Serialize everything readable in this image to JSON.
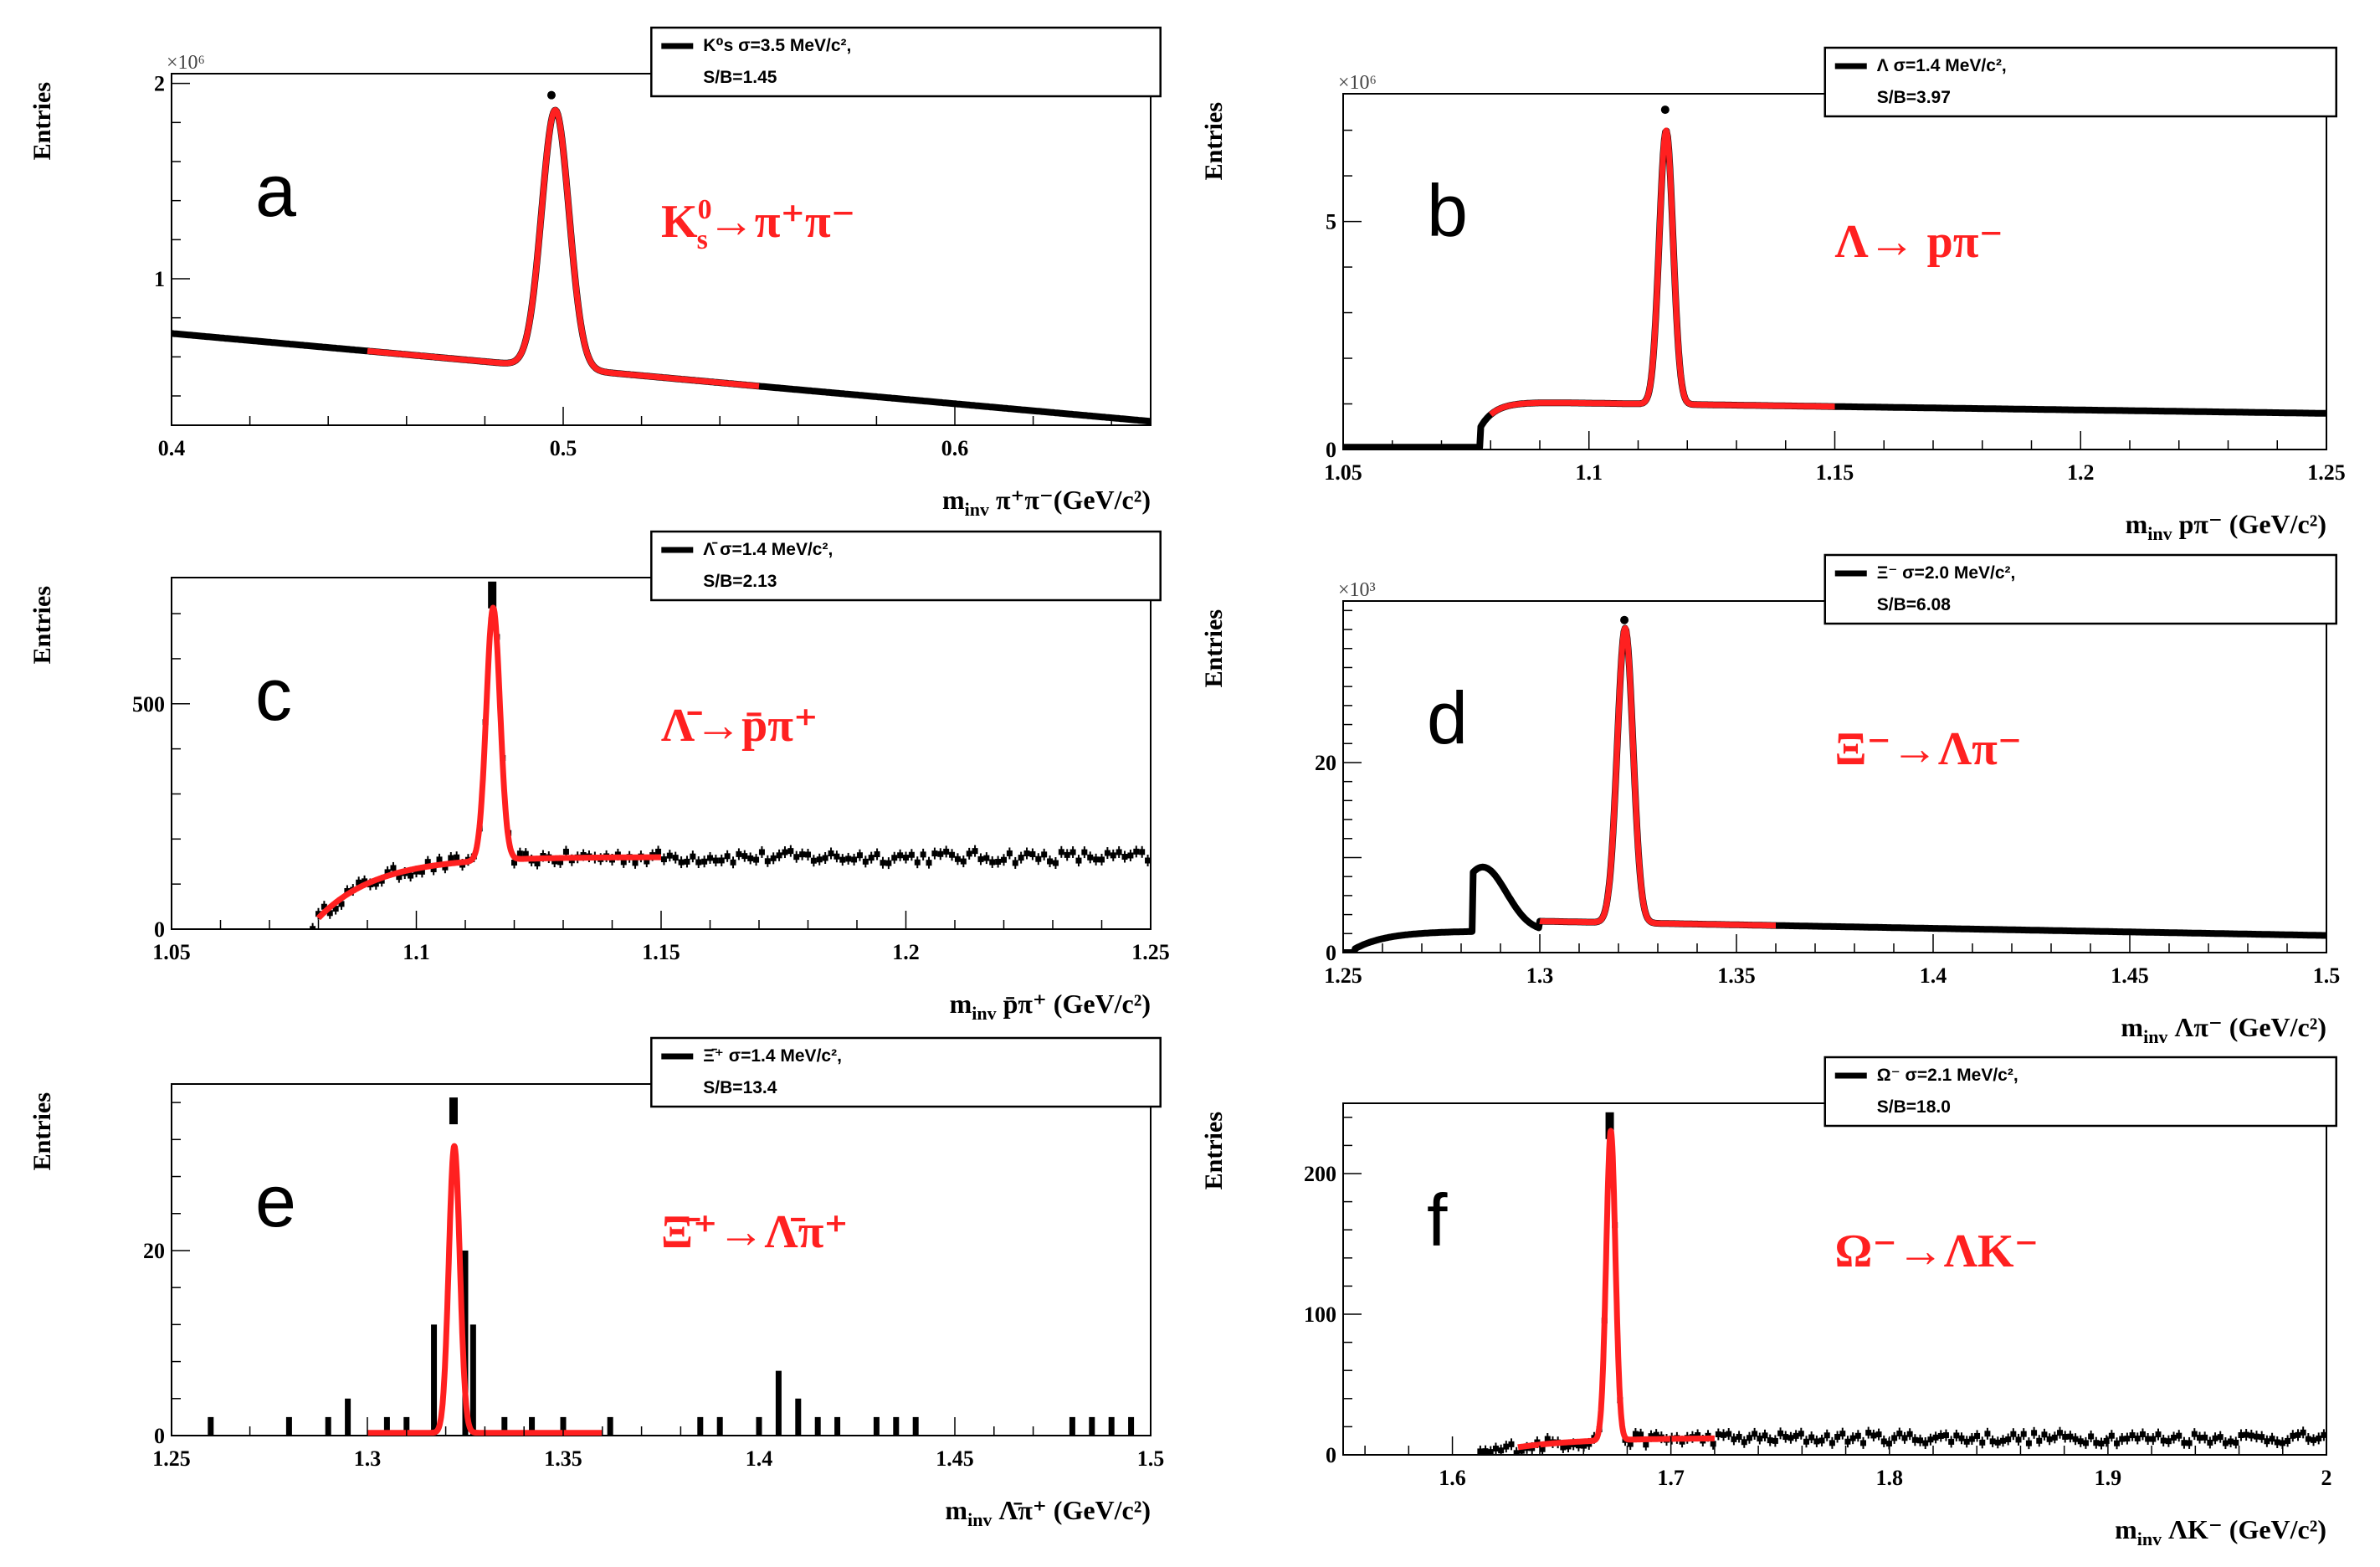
{
  "colors": {
    "data": "#000000",
    "fit": "#ff2020",
    "axis": "#000000",
    "reaction": "#ff2020"
  },
  "chart_data": [
    {
      "id": "a",
      "type": "scatter",
      "panel_letter": "a",
      "reaction_main": "K",
      "reaction_sup": "0",
      "reaction_sub": "s",
      "reaction_rest": "→π⁺π⁻",
      "ylabel": "Entries",
      "xlabel": "m",
      "xlabel_sub": "inv",
      "xlabel_rest": " π⁺π⁻(GeV/c²)",
      "exponent": "×10⁶",
      "xlim": [
        0.4,
        0.65
      ],
      "ylim": [
        0.25,
        2.05
      ],
      "xticks": [
        0.4,
        0.5,
        0.6
      ],
      "xtick_labels": [
        "0.4",
        "0.5",
        "0.6"
      ],
      "yticks": [
        1,
        2
      ],
      "ytick_labels": [
        "1",
        "2"
      ],
      "legend_line1": "K⁰s σ=3.5 MeV/c²,",
      "legend_line2": "S/B=1.45",
      "data_style": "line",
      "signal": {
        "mean": 0.498,
        "sigma": 0.0035,
        "amp": 1.32
      },
      "background": {
        "kind": "linear",
        "a": 0.72,
        "b": -1.8,
        "x0": 0.4
      },
      "fit_range": [
        0.45,
        0.55
      ],
      "peak_marker": {
        "x": 0.497,
        "y": 1.94
      }
    },
    {
      "id": "b",
      "type": "scatter",
      "panel_letter": "b",
      "reaction_main": "Λ→ pπ⁻",
      "reaction_sup": "",
      "reaction_sub": "",
      "reaction_rest": "",
      "ylabel": "Entries",
      "xlabel": "m",
      "xlabel_sub": "inv",
      "xlabel_rest": " pπ⁻ (GeV/c²)",
      "exponent": "×10⁶",
      "xlim": [
        1.05,
        1.25
      ],
      "ylim": [
        0,
        7.8
      ],
      "xticks": [
        1.05,
        1.1,
        1.15,
        1.2,
        1.25
      ],
      "xtick_labels": [
        "1.05",
        "1.1",
        "1.15",
        "1.2",
        "1.25"
      ],
      "yticks": [
        0,
        5
      ],
      "ytick_labels": [
        "0",
        "5"
      ],
      "legend_line1": "Λ σ=1.4 MeV/c²,",
      "legend_line2": "S/B=3.97",
      "data_style": "line",
      "signal": {
        "mean": 1.1157,
        "sigma": 0.0014,
        "amp": 6.0
      },
      "background": {
        "kind": "threshold",
        "th": 1.078,
        "pre": 0.05,
        "rise": 0.45,
        "scale": 0.55,
        "k": 0.003,
        "tail": -3.0
      },
      "fit_range": [
        1.08,
        1.15
      ],
      "peak_marker": {
        "x": 1.1155,
        "y": 7.45
      }
    },
    {
      "id": "c",
      "type": "scatter",
      "panel_letter": "c",
      "reaction_main": "Λ̄→p̄π⁺",
      "reaction_sup": "",
      "reaction_sub": "",
      "reaction_rest": "",
      "ylabel": "Entries",
      "xlabel": "m",
      "xlabel_sub": "inv",
      "xlabel_rest": " p̄π⁺ (GeV/c²)",
      "exponent": "",
      "xlim": [
        1.05,
        1.25
      ],
      "ylim": [
        0,
        780
      ],
      "xticks": [
        1.05,
        1.1,
        1.15,
        1.2,
        1.25
      ],
      "xtick_labels": [
        "1.05",
        "1.1",
        "1.15",
        "1.2",
        "1.25"
      ],
      "yticks": [
        0,
        500
      ],
      "ytick_labels": [
        "0",
        "500"
      ],
      "legend_line1": "Λ̄ σ=1.4 MeV/c²,",
      "legend_line2": "S/B=2.13",
      "data_style": "points",
      "noise": 14,
      "nbins": 170,
      "signal": {
        "mean": 1.1157,
        "sigma": 0.0014,
        "amp": 560
      },
      "background": {
        "kind": "threshold",
        "th": 1.078,
        "pre": 0,
        "rise": 0,
        "scale": 160,
        "k": 0.012,
        "tail": -0.1
      },
      "fit_range": [
        1.08,
        1.15
      ],
      "peak_marker": {
        "x": 1.1155,
        "y": 760
      }
    },
    {
      "id": "d",
      "type": "scatter",
      "panel_letter": "d",
      "reaction_main": "Ξ⁻→Λπ⁻",
      "reaction_sup": "",
      "reaction_sub": "",
      "reaction_rest": "",
      "ylabel": "Entries",
      "xlabel": "m",
      "xlabel_sub": "inv",
      "xlabel_rest": " Λπ⁻ (GeV/c²)",
      "exponent": "×10³",
      "xlim": [
        1.25,
        1.5
      ],
      "ylim": [
        0,
        37
      ],
      "xticks": [
        1.25,
        1.3,
        1.35,
        1.4,
        1.45,
        1.5
      ],
      "xtick_labels": [
        "1.25",
        "1.3",
        "1.35",
        "1.4",
        "1.45",
        "1.5"
      ],
      "yticks": [
        0,
        10,
        20
      ],
      "ytick_labels": [
        "0",
        "",
        "20"
      ],
      "legend_line1": "Ξ⁻ σ=2.0 MeV/c²,",
      "legend_line2": "S/B=6.08",
      "data_style": "line",
      "signal": {
        "mean": 1.3217,
        "sigma": 0.002,
        "amp": 31
      },
      "background": {
        "kind": "xi",
        "th": 1.253,
        "scale": 3.3
      },
      "fit_range": [
        1.3,
        1.36
      ],
      "peak_marker": {
        "x": 1.3215,
        "y": 35
      }
    },
    {
      "id": "e",
      "type": "scatter",
      "panel_letter": "e",
      "reaction_main": "Ξ̄⁺→Λ̄π⁺",
      "reaction_sup": "",
      "reaction_sub": "",
      "reaction_rest": "",
      "ylabel": "Entries",
      "xlabel": "m",
      "xlabel_sub": "inv",
      "xlabel_rest": " Λ̄π⁺ (GeV/c²)",
      "exponent": "",
      "xlim": [
        1.25,
        1.5
      ],
      "ylim": [
        0,
        38
      ],
      "xticks": [
        1.25,
        1.3,
        1.35,
        1.4,
        1.45,
        1.5
      ],
      "xtick_labels": [
        "1.25",
        "1.3",
        "1.35",
        "1.4",
        "1.45",
        "1.5"
      ],
      "yticks": [
        0,
        20
      ],
      "ytick_labels": [
        "0",
        "20"
      ],
      "legend_line1": "Ξ̄⁺ σ=1.4 MeV/c²,",
      "legend_line2": "S/B=13.4",
      "data_style": "sparse",
      "sparse_x": [
        1.26,
        1.28,
        1.29,
        1.295,
        1.305,
        1.31,
        1.317,
        1.325,
        1.327,
        1.335,
        1.342,
        1.35,
        1.362,
        1.385,
        1.39,
        1.4,
        1.405,
        1.41,
        1.415,
        1.42,
        1.43,
        1.435,
        1.44,
        1.48,
        1.485,
        1.49,
        1.495
      ],
      "sparse_y": [
        2,
        2,
        2,
        4,
        2,
        2,
        12,
        20,
        12,
        2,
        2,
        2,
        2,
        2,
        2,
        2,
        7,
        4,
        2,
        2,
        2,
        2,
        2,
        2,
        2,
        2,
        2
      ],
      "signal": {
        "mean": 1.3222,
        "sigma": 0.0014,
        "amp": 31
      },
      "background": {
        "kind": "flat",
        "level": 0.3
      },
      "fit_range": [
        1.3,
        1.36
      ],
      "peak_marker": {
        "x": 1.322,
        "y": 36
      }
    },
    {
      "id": "f",
      "type": "scatter",
      "panel_letter": "f",
      "reaction_main": "Ω⁻→ΛK⁻",
      "reaction_sup": "",
      "reaction_sub": "",
      "reaction_rest": "",
      "ylabel": "Entries",
      "xlabel": "m",
      "xlabel_sub": "inv",
      "xlabel_rest": " ΛK⁻ (GeV/c²)",
      "exponent": "",
      "xlim": [
        1.55,
        2.0
      ],
      "ylim": [
        0,
        250
      ],
      "xticks": [
        1.6,
        1.7,
        1.8,
        1.9,
        2.0
      ],
      "xtick_labels": [
        "1.6",
        "1.7",
        "1.8",
        "1.9",
        "2"
      ],
      "yticks": [
        0,
        100,
        200
      ],
      "ytick_labels": [
        "0",
        "100",
        "200"
      ],
      "legend_line1": "Ω⁻ σ=2.1 MeV/c²,",
      "legend_line2": "S/B=18.0",
      "data_style": "points",
      "noise": 4,
      "nbins": 190,
      "signal": {
        "mean": 1.6725,
        "sigma": 0.0021,
        "amp": 220
      },
      "background": {
        "kind": "threshold",
        "th": 1.612,
        "pre": 0,
        "rise": 0,
        "scale": 12,
        "k": 0.03,
        "tail": 0
      },
      "fit_range": [
        1.63,
        1.72
      ],
      "peak_marker": {
        "x": 1.672,
        "y": 240
      }
    }
  ]
}
